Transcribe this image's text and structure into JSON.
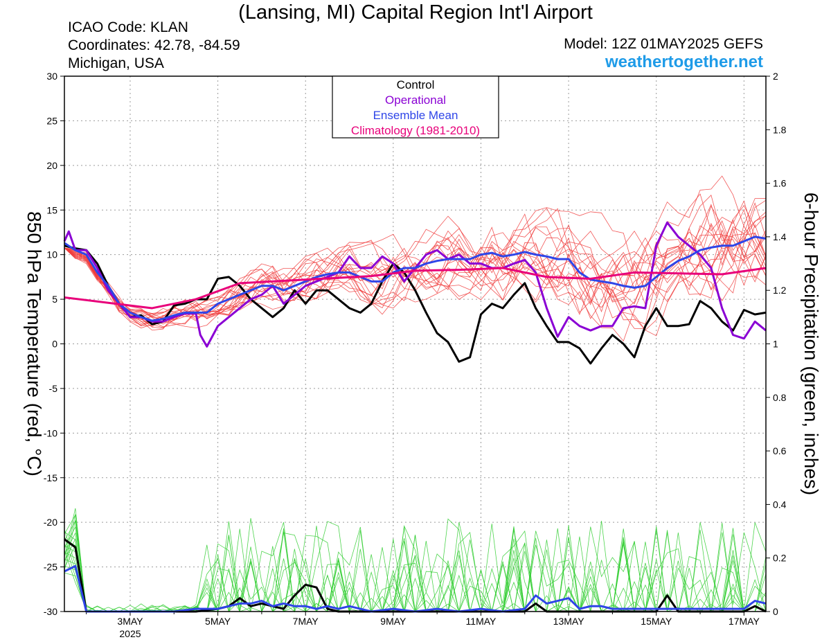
{
  "header": {
    "title": "(Lansing, MI) Capital Region Int'l Airport",
    "icao": "ICAO Code: KLAN",
    "coordinates": "Coordinates: 42.78, -84.59",
    "region": "Michigan, USA",
    "model": "Model: 12Z 01MAY2025 GEFS",
    "site": "weathertogether.net"
  },
  "colors": {
    "control": "#000000",
    "operational": "#8a00d4",
    "ensemble_mean": "#2e45e8",
    "climatology": "#e8007a",
    "members_temp": "#f03a3a",
    "members_precip": "#2ecc2e",
    "grid": "#9a9a9a"
  },
  "chart_data": {
    "type": "line",
    "title": "(Lansing, MI) Capital Region Int'l Airport",
    "ylabel_left": "850 hPa Temperature (red, °C)",
    "ylabel_right": "6-hour Precipitation (green, inches)",
    "x_ticks": [
      "3MAY",
      "5MAY",
      "7MAY",
      "9MAY",
      "11MAY",
      "13MAY",
      "15MAY",
      "17MAY"
    ],
    "x_year_label": "2025",
    "x_range_days": [
      1.5,
      17.5
    ],
    "ylim_left": [
      -30,
      30
    ],
    "yticks_left": [
      30,
      25,
      20,
      15,
      10,
      5,
      0,
      -5,
      -10,
      -15,
      -20,
      -25,
      -30
    ],
    "ylim_right": [
      0,
      2
    ],
    "yticks_right": [
      "2",
      "1.8",
      "1.6",
      "1.4",
      "1.2",
      "1",
      "0.8",
      "0.6",
      "0.4",
      "0.2",
      "0"
    ],
    "grid": true,
    "legend": {
      "placement": "top-center",
      "entries": [
        "Control",
        "Operational",
        "Ensemble Mean",
        "Climatology (1981-2010)"
      ]
    },
    "temperature_series": [
      {
        "name": "Control",
        "points": [
          [
            1.5,
            11
          ],
          [
            1.75,
            10.7
          ],
          [
            2,
            10.5
          ],
          [
            2.25,
            9
          ],
          [
            2.5,
            6.5
          ],
          [
            2.75,
            4.5
          ],
          [
            3,
            3
          ],
          [
            3.25,
            3.2
          ],
          [
            3.5,
            2.2
          ],
          [
            3.75,
            2.5
          ],
          [
            4,
            4.3
          ],
          [
            4.25,
            4.5
          ],
          [
            4.5,
            5
          ],
          [
            4.75,
            5
          ],
          [
            5,
            7.3
          ],
          [
            5.25,
            7.5
          ],
          [
            5.5,
            6.5
          ],
          [
            5.75,
            5
          ],
          [
            6,
            4
          ],
          [
            6.25,
            3
          ],
          [
            6.5,
            4
          ],
          [
            6.75,
            6
          ],
          [
            7,
            4.5
          ],
          [
            7.25,
            6
          ],
          [
            7.5,
            6
          ],
          [
            7.75,
            5
          ],
          [
            8,
            4
          ],
          [
            8.25,
            3.5
          ],
          [
            8.5,
            4.5
          ],
          [
            8.75,
            7
          ],
          [
            9,
            9
          ],
          [
            9.25,
            8
          ],
          [
            9.5,
            6
          ],
          [
            9.75,
            3.5
          ],
          [
            10,
            1.2
          ],
          [
            10.25,
            0.2
          ],
          [
            10.5,
            -2
          ],
          [
            10.75,
            -1.5
          ],
          [
            11,
            3.3
          ],
          [
            11.25,
            4.5
          ],
          [
            11.5,
            4
          ],
          [
            11.75,
            5.5
          ],
          [
            12,
            6.8
          ],
          [
            12.25,
            4
          ],
          [
            12.5,
            2
          ],
          [
            12.75,
            0.2
          ],
          [
            13,
            0.2
          ],
          [
            13.25,
            -0.5
          ],
          [
            13.5,
            -2.2
          ],
          [
            13.75,
            -0.5
          ],
          [
            14,
            1
          ],
          [
            14.25,
            0
          ],
          [
            14.5,
            -1.5
          ],
          [
            14.75,
            2
          ],
          [
            15,
            4
          ],
          [
            15.25,
            2
          ],
          [
            15.5,
            2
          ],
          [
            15.75,
            2.2
          ],
          [
            16,
            4.8
          ],
          [
            16.25,
            4
          ],
          [
            16.5,
            2.5
          ],
          [
            16.75,
            1.5
          ],
          [
            17,
            3.8
          ],
          [
            17.25,
            3.3
          ],
          [
            17.5,
            3.5
          ]
        ]
      },
      {
        "name": "Operational",
        "points": [
          [
            1.5,
            11.5
          ],
          [
            1.6,
            12.6
          ],
          [
            1.75,
            10.5
          ],
          [
            2,
            10.5
          ],
          [
            2.25,
            8.5
          ],
          [
            2.5,
            6
          ],
          [
            2.75,
            4.5
          ],
          [
            3,
            3
          ],
          [
            3.25,
            3
          ],
          [
            3.5,
            2.5
          ],
          [
            3.75,
            2.5
          ],
          [
            4,
            3
          ],
          [
            4.25,
            3.4
          ],
          [
            4.5,
            3.4
          ],
          [
            4.6,
            1
          ],
          [
            4.75,
            -0.3
          ],
          [
            5,
            2
          ],
          [
            5.25,
            3
          ],
          [
            5.5,
            4
          ],
          [
            5.75,
            5
          ],
          [
            6,
            5.5
          ],
          [
            6.25,
            6.5
          ],
          [
            6.5,
            4.5
          ],
          [
            6.75,
            5.5
          ],
          [
            7,
            6.5
          ],
          [
            7.25,
            7
          ],
          [
            7.5,
            7.5
          ],
          [
            7.75,
            8
          ],
          [
            8,
            9.8
          ],
          [
            8.25,
            8.5
          ],
          [
            8.5,
            8.5
          ],
          [
            8.75,
            9.8
          ],
          [
            9,
            9
          ],
          [
            9.25,
            7
          ],
          [
            9.5,
            8.5
          ],
          [
            9.75,
            10
          ],
          [
            10,
            10.5
          ],
          [
            10.25,
            9.5
          ],
          [
            10.5,
            10
          ],
          [
            10.75,
            9
          ],
          [
            11,
            9
          ],
          [
            11.25,
            8.5
          ],
          [
            11.5,
            8.5
          ],
          [
            11.75,
            9
          ],
          [
            12,
            9.4
          ],
          [
            12.25,
            8
          ],
          [
            12.5,
            4
          ],
          [
            12.75,
            0.8
          ],
          [
            13,
            3
          ],
          [
            13.25,
            2
          ],
          [
            13.5,
            1.5
          ],
          [
            13.75,
            2
          ],
          [
            14,
            2
          ],
          [
            14.25,
            4
          ],
          [
            14.5,
            4.2
          ],
          [
            14.75,
            4
          ],
          [
            15,
            11
          ],
          [
            15.25,
            13.6
          ],
          [
            15.5,
            12
          ],
          [
            15.75,
            11
          ],
          [
            16,
            10
          ],
          [
            16.25,
            8.5
          ],
          [
            16.5,
            4
          ],
          [
            16.75,
            1
          ],
          [
            17,
            0.6
          ],
          [
            17.25,
            2.5
          ],
          [
            17.5,
            1.5
          ]
        ]
      },
      {
        "name": "Ensemble Mean",
        "points": [
          [
            1.5,
            11.3
          ],
          [
            1.75,
            10.5
          ],
          [
            2,
            10
          ],
          [
            2.25,
            8
          ],
          [
            2.5,
            6.5
          ],
          [
            2.75,
            4.5
          ],
          [
            3,
            3.5
          ],
          [
            3.25,
            3
          ],
          [
            3.5,
            2.6
          ],
          [
            3.75,
            2.8
          ],
          [
            4,
            3.2
          ],
          [
            4.25,
            3.5
          ],
          [
            4.5,
            3.5
          ],
          [
            4.75,
            3.5
          ],
          [
            5,
            4.5
          ],
          [
            5.25,
            5
          ],
          [
            5.5,
            5.5
          ],
          [
            5.75,
            6
          ],
          [
            6,
            6.5
          ],
          [
            6.25,
            6.5
          ],
          [
            6.5,
            6
          ],
          [
            6.75,
            6.5
          ],
          [
            7,
            7
          ],
          [
            7.25,
            7.5
          ],
          [
            7.5,
            7.8
          ],
          [
            7.75,
            8
          ],
          [
            8,
            8
          ],
          [
            8.25,
            7.5
          ],
          [
            8.5,
            7
          ],
          [
            8.75,
            7
          ],
          [
            9,
            8
          ],
          [
            9.25,
            8.5
          ],
          [
            9.5,
            8.5
          ],
          [
            9.75,
            9
          ],
          [
            10,
            9.3
          ],
          [
            10.25,
            9.5
          ],
          [
            10.5,
            9.5
          ],
          [
            10.75,
            9.5
          ],
          [
            11,
            10
          ],
          [
            11.25,
            10.2
          ],
          [
            11.5,
            9.8
          ],
          [
            11.75,
            10
          ],
          [
            12,
            10.3
          ],
          [
            12.25,
            10
          ],
          [
            12.5,
            9.8
          ],
          [
            12.75,
            9.5
          ],
          [
            13,
            9.5
          ],
          [
            13.25,
            8
          ],
          [
            13.5,
            7.2
          ],
          [
            13.75,
            7
          ],
          [
            14,
            6.8
          ],
          [
            14.25,
            6.5
          ],
          [
            14.5,
            6.3
          ],
          [
            14.75,
            6.5
          ],
          [
            15,
            7.5
          ],
          [
            15.25,
            8.5
          ],
          [
            15.5,
            9.3
          ],
          [
            15.75,
            9.8
          ],
          [
            16,
            10.5
          ],
          [
            16.25,
            10.8
          ],
          [
            16.5,
            11
          ],
          [
            16.75,
            11
          ],
          [
            17,
            11.5
          ],
          [
            17.25,
            12
          ],
          [
            17.5,
            11.8
          ]
        ]
      },
      {
        "name": "Climatology (1981-2010)",
        "points": [
          [
            1.5,
            5.2
          ],
          [
            2.5,
            4.6
          ],
          [
            3.5,
            4
          ],
          [
            4.5,
            5
          ],
          [
            5.5,
            6.8
          ],
          [
            7,
            7.2
          ],
          [
            8.5,
            7.6
          ],
          [
            9.5,
            8.2
          ],
          [
            10.5,
            8.3
          ],
          [
            11.5,
            8.5
          ],
          [
            12.5,
            7.5
          ],
          [
            13.5,
            7.3
          ],
          [
            14.5,
            8
          ],
          [
            15.5,
            7.9
          ],
          [
            16.5,
            7.8
          ],
          [
            17.5,
            8.5
          ]
        ]
      }
    ],
    "precipitation_series": [
      {
        "name": "Control",
        "points": [
          [
            1.5,
            0.27
          ],
          [
            1.75,
            0.24
          ],
          [
            2,
            0
          ],
          [
            2.5,
            0
          ],
          [
            3,
            0
          ],
          [
            3.5,
            0
          ],
          [
            4,
            0
          ],
          [
            4.5,
            0
          ],
          [
            5,
            0.01
          ],
          [
            5.25,
            0.02
          ],
          [
            5.5,
            0.05
          ],
          [
            5.75,
            0.02
          ],
          [
            6,
            0.03
          ],
          [
            6.25,
            0.02
          ],
          [
            6.5,
            0.01
          ],
          [
            6.75,
            0.06
          ],
          [
            7,
            0.1
          ],
          [
            7.25,
            0.09
          ],
          [
            7.5,
            0.01
          ],
          [
            7.75,
            0
          ],
          [
            8,
            0
          ],
          [
            8.5,
            0
          ],
          [
            9,
            0
          ],
          [
            9.5,
            0
          ],
          [
            10,
            0
          ],
          [
            10.5,
            0
          ],
          [
            11,
            0
          ],
          [
            11.5,
            0
          ],
          [
            12,
            0
          ],
          [
            12.25,
            0.03
          ],
          [
            12.5,
            0
          ],
          [
            13,
            0
          ],
          [
            13.5,
            0
          ],
          [
            14,
            0
          ],
          [
            14.5,
            0
          ],
          [
            15,
            0
          ],
          [
            15.25,
            0.06
          ],
          [
            15.5,
            0
          ],
          [
            16,
            0
          ],
          [
            16.5,
            0
          ],
          [
            17,
            0
          ],
          [
            17.25,
            0.02
          ],
          [
            17.5,
            0
          ]
        ]
      },
      {
        "name": "Ensemble Mean",
        "points": [
          [
            1.5,
            0.15
          ],
          [
            1.75,
            0.17
          ],
          [
            2,
            0
          ],
          [
            2.5,
            0
          ],
          [
            3,
            0
          ],
          [
            3.5,
            0
          ],
          [
            4,
            0
          ],
          [
            4.5,
            0.01
          ],
          [
            5,
            0.01
          ],
          [
            5.25,
            0.02
          ],
          [
            5.5,
            0.03
          ],
          [
            5.75,
            0.03
          ],
          [
            6,
            0.04
          ],
          [
            6.25,
            0.02
          ],
          [
            6.5,
            0.03
          ],
          [
            6.75,
            0.02
          ],
          [
            7,
            0.02
          ],
          [
            7.25,
            0.01
          ],
          [
            7.5,
            0.02
          ],
          [
            7.75,
            0.01
          ],
          [
            8,
            0.02
          ],
          [
            8.25,
            0.01
          ],
          [
            8.5,
            0
          ],
          [
            9,
            0.01
          ],
          [
            9.5,
            0
          ],
          [
            10,
            0.01
          ],
          [
            10.5,
            0
          ],
          [
            11,
            0.01
          ],
          [
            11.5,
            0
          ],
          [
            12,
            0.01
          ],
          [
            12.25,
            0.06
          ],
          [
            12.5,
            0.03
          ],
          [
            12.75,
            0.04
          ],
          [
            13,
            0.05
          ],
          [
            13.25,
            0.01
          ],
          [
            13.5,
            0.02
          ],
          [
            13.75,
            0.02
          ],
          [
            14,
            0.01
          ],
          [
            14.5,
            0.01
          ],
          [
            15,
            0.01
          ],
          [
            15.5,
            0.01
          ],
          [
            16,
            0.01
          ],
          [
            16.5,
            0.01
          ],
          [
            17,
            0.01
          ],
          [
            17.25,
            0.04
          ],
          [
            17.5,
            0.03
          ]
        ]
      }
    ]
  }
}
